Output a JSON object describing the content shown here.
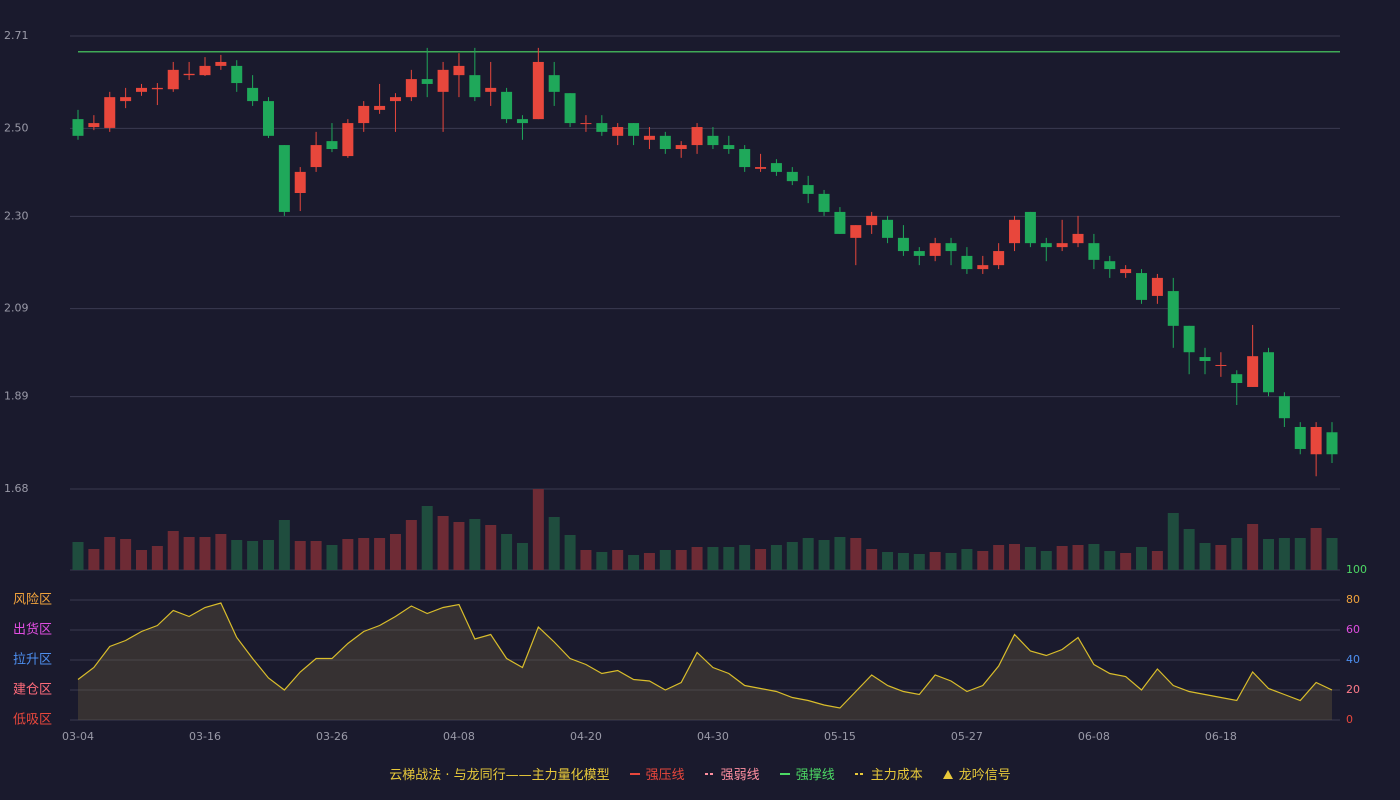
{
  "chart_data": [
    {
      "type": "candlestick",
      "categories": [
        "03-04",
        null,
        null,
        null,
        null,
        null,
        null,
        null,
        "03-16",
        null,
        null,
        null,
        null,
        null,
        null,
        null,
        "03-26",
        null,
        null,
        null,
        null,
        null,
        null,
        null,
        "04-08",
        null,
        null,
        null,
        null,
        null,
        null,
        null,
        "04-20",
        null,
        null,
        null,
        null,
        null,
        null,
        null,
        "04-30",
        null,
        null,
        null,
        null,
        null,
        null,
        null,
        "05-15",
        null,
        null,
        null,
        null,
        null,
        null,
        null,
        "05-27",
        null,
        null,
        null,
        null,
        null,
        null,
        null,
        "06-08",
        null,
        null,
        null,
        null,
        null,
        null,
        null,
        "06-18",
        null,
        null,
        null,
        null,
        null,
        null,
        null
      ],
      "open": [
        2.521,
        2.503,
        2.501,
        2.562,
        2.583,
        2.589,
        2.589,
        2.621,
        2.621,
        2.642,
        2.642,
        2.592,
        2.562,
        2.462,
        2.353,
        2.412,
        2.471,
        2.437,
        2.512,
        2.542,
        2.562,
        2.571,
        2.612,
        2.583,
        2.621,
        2.621,
        2.583,
        2.583,
        2.521,
        2.521,
        2.621,
        2.58,
        2.51,
        2.512,
        2.483,
        2.512,
        2.474,
        2.483,
        2.453,
        2.462,
        2.483,
        2.462,
        2.453,
        2.408,
        2.421,
        2.401,
        2.371,
        2.351,
        2.31,
        2.251,
        2.28,
        2.292,
        2.251,
        2.221,
        2.21,
        2.239,
        2.21,
        2.18,
        2.189,
        2.239,
        2.31,
        2.239,
        2.23,
        2.239,
        2.239,
        2.198,
        2.171,
        2.171,
        2.119,
        2.13,
        2.051,
        1.98,
        1.96,
        1.941,
        1.912,
        1.991,
        1.891,
        1.821,
        1.759,
        1.809
      ],
      "high": [
        2.542,
        2.53,
        2.583,
        2.592,
        2.601,
        2.603,
        2.651,
        2.651,
        2.662,
        2.667,
        2.655,
        2.621,
        2.571,
        2.462,
        2.412,
        2.492,
        2.512,
        2.521,
        2.562,
        2.601,
        2.58,
        2.633,
        2.683,
        2.651,
        2.671,
        2.683,
        2.651,
        2.592,
        2.53,
        2.683,
        2.651,
        2.58,
        2.53,
        2.53,
        2.512,
        2.512,
        2.503,
        2.492,
        2.471,
        2.512,
        2.503,
        2.483,
        2.462,
        2.442,
        2.43,
        2.412,
        2.392,
        2.36,
        2.321,
        2.28,
        2.31,
        2.301,
        2.28,
        2.23,
        2.251,
        2.251,
        2.23,
        2.21,
        2.239,
        2.301,
        2.31,
        2.251,
        2.292,
        2.301,
        2.26,
        2.21,
        2.189,
        2.18,
        2.169,
        2.16,
        2.051,
        2.001,
        1.991,
        1.95,
        2.053,
        2.001,
        1.9,
        1.832,
        1.832,
        1.832
      ],
      "low": [
        2.474,
        2.496,
        2.492,
        2.546,
        2.574,
        2.553,
        2.583,
        2.61,
        2.619,
        2.633,
        2.583,
        2.551,
        2.478,
        2.301,
        2.312,
        2.401,
        2.446,
        2.433,
        2.492,
        2.533,
        2.492,
        2.562,
        2.571,
        2.492,
        2.571,
        2.562,
        2.551,
        2.512,
        2.474,
        2.521,
        2.551,
        2.503,
        2.492,
        2.483,
        2.462,
        2.462,
        2.453,
        2.442,
        2.433,
        2.442,
        2.453,
        2.442,
        2.401,
        2.401,
        2.392,
        2.371,
        2.33,
        2.301,
        2.26,
        2.189,
        2.26,
        2.239,
        2.21,
        2.189,
        2.198,
        2.189,
        2.169,
        2.169,
        2.18,
        2.221,
        2.23,
        2.198,
        2.221,
        2.23,
        2.18,
        2.16,
        2.16,
        2.101,
        2.101,
        2.001,
        1.941,
        1.941,
        1.935,
        1.871,
        1.912,
        1.891,
        1.821,
        1.759,
        1.709,
        1.739
      ],
      "close": [
        2.483,
        2.512,
        2.571,
        2.571,
        2.592,
        2.592,
        2.633,
        2.624,
        2.642,
        2.651,
        2.603,
        2.562,
        2.483,
        2.31,
        2.401,
        2.462,
        2.453,
        2.512,
        2.551,
        2.551,
        2.571,
        2.612,
        2.601,
        2.633,
        2.642,
        2.571,
        2.592,
        2.521,
        2.512,
        2.651,
        2.583,
        2.512,
        2.512,
        2.492,
        2.503,
        2.483,
        2.483,
        2.453,
        2.462,
        2.503,
        2.462,
        2.453,
        2.412,
        2.412,
        2.401,
        2.38,
        2.351,
        2.31,
        2.26,
        2.28,
        2.301,
        2.251,
        2.221,
        2.21,
        2.239,
        2.221,
        2.18,
        2.189,
        2.221,
        2.292,
        2.239,
        2.23,
        2.239,
        2.26,
        2.201,
        2.18,
        2.18,
        2.11,
        2.16,
        2.051,
        1.991,
        1.971,
        1.962,
        1.921,
        1.982,
        1.9,
        1.841,
        1.771,
        1.821,
        1.759
      ],
      "volume": [
        28,
        21,
        33,
        31,
        20,
        24,
        39,
        33,
        33,
        36,
        30,
        29,
        30,
        50,
        29,
        29,
        25,
        31,
        32,
        32,
        36,
        50,
        64,
        54,
        48,
        51,
        45,
        36,
        27,
        81,
        53,
        35,
        20,
        18,
        20,
        15,
        17,
        20,
        20,
        23,
        23,
        23,
        25,
        21,
        25,
        28,
        32,
        30,
        33,
        32,
        21,
        18,
        17,
        16,
        18,
        17,
        21,
        19,
        25,
        26,
        23,
        19,
        24,
        25,
        26,
        19,
        17,
        23,
        19,
        57,
        41,
        27,
        25,
        32,
        46,
        31,
        32,
        32,
        42,
        32
      ],
      "up_color": "#e8473c",
      "down_color": "#1fa85a",
      "volume_up_color": "#6e2b35",
      "volume_down_color": "#1f4d3e",
      "reference_line": 2.674,
      "reference_color": "#4cd964",
      "ylim": [
        1.68,
        2.71
      ],
      "yticks": [
        1.68,
        1.89,
        2.09,
        {
          "value": 2.3,
          "label": "2.30"
        },
        {
          "value": 2.5,
          "label": "2.50"
        },
        2.71
      ],
      "grid": true
    },
    {
      "type": "line",
      "values": [
        27,
        35,
        49,
        53,
        59,
        63,
        73,
        69,
        75,
        78,
        55,
        41,
        28,
        20,
        32,
        41,
        41,
        51,
        59,
        63,
        69,
        76,
        71,
        75,
        77,
        54,
        57,
        41,
        35,
        62,
        52,
        41,
        37,
        31,
        33,
        27,
        26,
        20,
        25,
        45,
        35,
        31,
        23,
        21,
        19,
        15,
        13,
        10,
        8,
        19,
        30,
        23,
        19,
        17,
        30,
        26,
        19,
        23,
        36,
        57,
        46,
        43,
        47,
        55,
        37,
        31,
        29,
        20,
        34,
        23,
        19,
        17,
        15,
        13,
        32,
        21,
        17,
        13,
        25,
        20
      ],
      "color": "#d9bd2b",
      "fill": "rgba(110,95,60,0.35)",
      "ylim": [
        0,
        100
      ],
      "yticks": [
        0,
        20,
        40,
        60,
        80,
        100
      ],
      "ytick_colors": [
        "#e8473c",
        "#ff7b8a",
        "#4d8ff0",
        "#e04ee0",
        "#f0a23c",
        "#4cd964"
      ],
      "zones": [
        {
          "label": "风险区",
          "value": 80,
          "color": "#f0a23c"
        },
        {
          "label": "出货区",
          "value": 60,
          "color": "#e04ee0"
        },
        {
          "label": "拉升区",
          "value": 40,
          "color": "#4d8ff0"
        },
        {
          "label": "建仓区",
          "value": 20,
          "color": "#ff6b7a"
        },
        {
          "label": "低吸区",
          "value": 0,
          "color": "#e8473c"
        }
      ]
    }
  ],
  "legend": {
    "title": "云梯战法 · 与龙同行——主力量化模型",
    "items": [
      {
        "name": "强压线",
        "color": "#e8473c",
        "style": "solid"
      },
      {
        "name": "强弱线",
        "color": "#ff8fa0",
        "style": "dashed"
      },
      {
        "name": "强撑线",
        "color": "#4cd964",
        "style": "solid"
      },
      {
        "name": "主力成本",
        "color": "#e8c93a",
        "style": "dashed"
      },
      {
        "name": "龙吟信号",
        "color": "#e8c93a",
        "style": "triangle"
      }
    ]
  }
}
